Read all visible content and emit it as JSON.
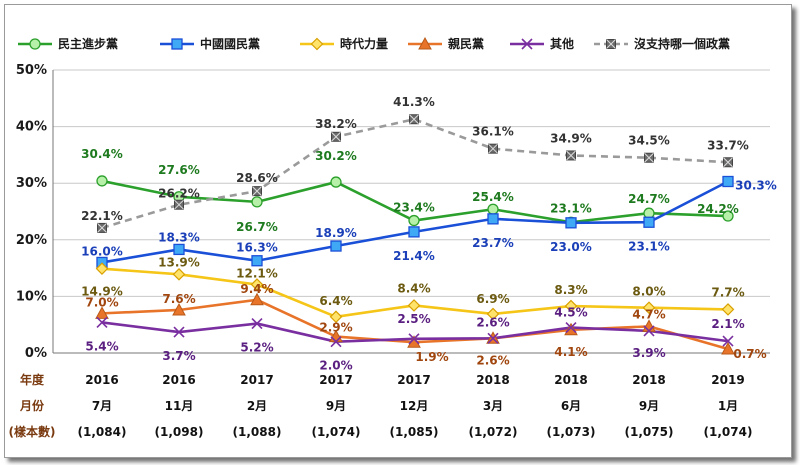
{
  "chart_data": {
    "type": "line",
    "ylim": [
      0,
      50
    ],
    "yticks": [
      "0%",
      "10%",
      "20%",
      "30%",
      "40%",
      "50%"
    ],
    "ytick_values": [
      0,
      10,
      20,
      30,
      40,
      50
    ],
    "row_headers": [
      "年度",
      "月份",
      "(樣本數)"
    ],
    "years": [
      "2016",
      "2016",
      "2017",
      "2017",
      "2017",
      "2018",
      "2018",
      "2018",
      "2019"
    ],
    "months": [
      "7月",
      "11月",
      "2月",
      "9月",
      "12月",
      "3月",
      "6月",
      "9月",
      "1月"
    ],
    "samples": [
      "(1,084)",
      "(1,098)",
      "(1,088)",
      "(1,074)",
      "(1,085)",
      "(1,072)",
      "(1,073)",
      "(1,075)",
      "(1,074)"
    ],
    "series": [
      {
        "name": "民主進步黨",
        "color": "#2ca02c",
        "fill": "#b7f0a8",
        "marker": "circle",
        "dashed": false,
        "values": [
          30.4,
          27.6,
          26.7,
          30.2,
          23.4,
          25.4,
          23.1,
          24.7,
          24.2
        ],
        "labels": [
          "30.4%",
          "27.6%",
          "26.7%",
          "30.2%",
          "23.4%",
          "25.4%",
          "23.1%",
          "24.7%",
          "24.2%"
        ],
        "label_color": "#1e7a1e"
      },
      {
        "name": "中國國民黨",
        "color": "#1a4fd8",
        "fill": "#3fa9f5",
        "marker": "square",
        "dashed": false,
        "values": [
          16.0,
          18.3,
          16.3,
          18.9,
          21.4,
          23.7,
          23.0,
          23.1,
          30.3
        ],
        "labels": [
          "16.0%",
          "18.3%",
          "16.3%",
          "18.9%",
          "21.4%",
          "23.7%",
          "23.0%",
          "23.1%",
          "30.3%"
        ],
        "label_color": "#1a3fb8"
      },
      {
        "name": "時代力量",
        "color": "#f5c518",
        "fill": "#ffe36b",
        "marker": "diamond",
        "dashed": false,
        "values": [
          14.9,
          13.9,
          12.1,
          6.4,
          8.4,
          6.9,
          8.3,
          8.0,
          7.7
        ],
        "labels": [
          "14.9%",
          "13.9%",
          "12.1%",
          "6.4%",
          "8.4%",
          "6.9%",
          "8.3%",
          "8.0%",
          "7.7%"
        ],
        "label_color": "#6b5a10"
      },
      {
        "name": "親民黨",
        "color": "#e8742a",
        "fill": "#e8742a",
        "marker": "triangle",
        "dashed": false,
        "values": [
          7.0,
          7.6,
          9.4,
          2.9,
          1.9,
          2.6,
          4.1,
          4.7,
          0.7
        ],
        "labels": [
          "7.0%",
          "7.6%",
          "9.4%",
          "2.9%",
          "1.9%",
          "2.6%",
          "4.1%",
          "4.7%",
          "0.7%"
        ],
        "label_color": "#a0460e"
      },
      {
        "name": "其他",
        "color": "#7a2fa0",
        "fill": "#7a2fa0",
        "marker": "x",
        "dashed": false,
        "values": [
          5.4,
          3.7,
          5.2,
          2.0,
          2.5,
          2.6,
          4.5,
          3.9,
          2.1
        ],
        "labels": [
          "5.4%",
          "3.7%",
          "5.2%",
          "2.0%",
          "2.5%",
          "2.6%",
          "4.5%",
          "3.9%",
          "2.1%"
        ],
        "label_color": "#5a1f80"
      },
      {
        "name": "沒支持哪一個政黨",
        "color": "#9a9a9a",
        "fill": "#6a6a6a",
        "marker": "star",
        "dashed": true,
        "values": [
          22.1,
          26.2,
          28.6,
          38.2,
          41.3,
          36.1,
          34.9,
          34.5,
          33.7
        ],
        "labels": [
          "22.1%",
          "26.2%",
          "28.6%",
          "38.2%",
          "41.3%",
          "36.1%",
          "34.9%",
          "34.5%",
          "33.7%"
        ],
        "label_color": "#333333"
      }
    ]
  }
}
